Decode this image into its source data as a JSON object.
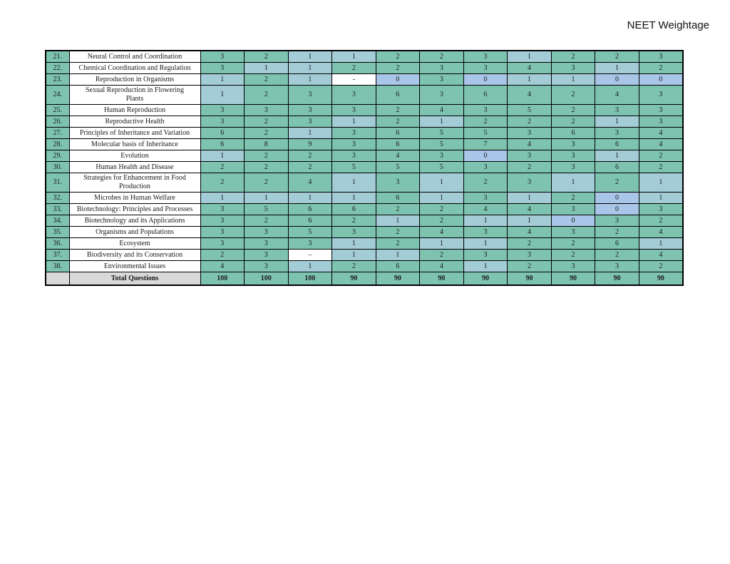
{
  "page": {
    "title": "NEET Weightage"
  },
  "colors": {
    "green": "#7dc3b0",
    "one": "#a3ccd6",
    "zero": "#a9c6e8",
    "grey": "#d9d9d9",
    "white": "#ffffff"
  },
  "table": {
    "num_col_width": 33,
    "chapter_col_width": 184,
    "value_col_count": 11,
    "rows": [
      {
        "num": "21.",
        "chapter": "Neural Control and Coordination",
        "values": [
          "3",
          "2",
          "1",
          "1",
          "2",
          "2",
          "3",
          "1",
          "2",
          "2",
          "3"
        ]
      },
      {
        "num": "22.",
        "chapter": "Chemical Coordination and Regulation",
        "values": [
          "3",
          "1",
          "1",
          "2",
          "2",
          "3",
          "3",
          "4",
          "3",
          "1",
          "2"
        ]
      },
      {
        "num": "23.",
        "chapter": "Reproduction in Organisms",
        "values": [
          "1",
          "2",
          "1",
          "-",
          "0",
          "3",
          "0",
          "1",
          "1",
          "0",
          "0"
        ]
      },
      {
        "num": "24.",
        "chapter": "Sexual Reproduction in Flowering\nPlants",
        "values": [
          "1",
          "2",
          "3",
          "3",
          "6",
          "3",
          "6",
          "4",
          "2",
          "4",
          "3"
        ]
      },
      {
        "num": "25.",
        "chapter": "Human Reproduction",
        "values": [
          "3",
          "3",
          "3",
          "3",
          "2",
          "4",
          "3",
          "5",
          "2",
          "3",
          "3"
        ]
      },
      {
        "num": "26.",
        "chapter": "Reproductive Health",
        "values": [
          "3",
          "2",
          "3",
          "1",
          "2",
          "1",
          "2",
          "2",
          "2",
          "1",
          "3"
        ]
      },
      {
        "num": "27.",
        "chapter": "Principles of Inheritance and Variation",
        "values": [
          "6",
          "2",
          "1",
          "3",
          "6",
          "5",
          "5",
          "3",
          "6",
          "3",
          "4"
        ]
      },
      {
        "num": "28.",
        "chapter": "Molecular basis of Inheritance",
        "values": [
          "6",
          "8",
          "9",
          "3",
          "6",
          "5",
          "7",
          "4",
          "3",
          "6",
          "4"
        ]
      },
      {
        "num": "29.",
        "chapter": "Evolution",
        "values": [
          "1",
          "2",
          "2",
          "3",
          "4",
          "3",
          "0",
          "3",
          "3",
          "1",
          "2"
        ]
      },
      {
        "num": "30.",
        "chapter": "Human Health and Disease",
        "values": [
          "2",
          "2",
          "2",
          "5",
          "5",
          "5",
          "3",
          "2",
          "3",
          "6",
          "2"
        ]
      },
      {
        "num": "31.",
        "chapter": "Strategies for Enhancement in Food\nProduction",
        "values": [
          "2",
          "2",
          "4",
          "1",
          "3",
          "1",
          "2",
          "3",
          "1",
          "2",
          "1"
        ]
      },
      {
        "num": "32.",
        "chapter": "Microbes in Human Welfare",
        "values": [
          "1",
          "1",
          "1",
          "1",
          "6",
          "1",
          "3",
          "1",
          "2",
          "0",
          "1"
        ]
      },
      {
        "num": "33.",
        "chapter": "Biotechnology: Principles and Processes",
        "values": [
          "3",
          "5",
          "6",
          "6",
          "2",
          "2",
          "4",
          "4",
          "3",
          "0",
          "3"
        ]
      },
      {
        "num": "34.",
        "chapter": "Biotechnology and its Applications",
        "values": [
          "3",
          "2",
          "6",
          "2",
          "1",
          "2",
          "1",
          "1",
          "0",
          "3",
          "2"
        ]
      },
      {
        "num": "35.",
        "chapter": "Organisms and Populations",
        "values": [
          "3",
          "3",
          "5",
          "3",
          "2",
          "4",
          "3",
          "4",
          "3",
          "2",
          "4"
        ]
      },
      {
        "num": "36.",
        "chapter": "Ecosystem",
        "values": [
          "3",
          "3",
          "3",
          "1",
          "2",
          "1",
          "1",
          "2",
          "2",
          "6",
          "1"
        ]
      },
      {
        "num": "37.",
        "chapter": "Biodiversity and its Conservation",
        "values": [
          "2",
          "3",
          "–",
          "1",
          "1",
          "2",
          "3",
          "3",
          "2",
          "2",
          "4"
        ]
      },
      {
        "num": "38.",
        "chapter": "Environmental Issues",
        "values": [
          "4",
          "3",
          "1",
          "2",
          "6",
          "4",
          "1",
          "2",
          "3",
          "3",
          "2"
        ]
      }
    ],
    "total": {
      "label": "Total Questions",
      "values": [
        "100",
        "100",
        "100",
        "90",
        "90",
        "90",
        "90",
        "90",
        "90",
        "90",
        "90"
      ]
    }
  }
}
